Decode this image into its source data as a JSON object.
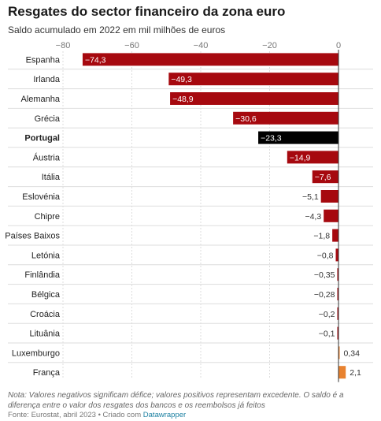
{
  "title": "Resgates do sector financeiro da zona euro",
  "subtitle": "Saldo acumulado em 2022 em mil milhões de euros",
  "notes": "Nota: Valores negativos significam défice; valores positivos representam excedente. O saldo é a diferença entre o valor dos resgates dos bancos e os reembolsos já feitos",
  "source_prefix": "Fonte: Eurostat, abril 2023 • Criado com ",
  "source_credit": "Datawrapper",
  "colors": {
    "negative": "#a6090f",
    "highlight": "#000000",
    "positive": "#e8822f",
    "grid": "#dddddd",
    "zero_line": "#333333"
  },
  "chart_data": {
    "type": "bar",
    "orientation": "horizontal",
    "x_ticks": [
      -80,
      -60,
      -40,
      -20,
      0
    ],
    "x_tick_labels": [
      "−80",
      "−60",
      "−40",
      "−20",
      "0"
    ],
    "xlim": [
      -80,
      0
    ],
    "highlight": "Portugal",
    "categories": [
      "Espanha",
      "Irlanda",
      "Alemanha",
      "Grécia",
      "Portugal",
      "Áustria",
      "Itália",
      "Eslovénia",
      "Chipre",
      "Países Baixos",
      "Letónia",
      "Finlândia",
      "Bélgica",
      "Croácia",
      "Lituânia",
      "Luxemburgo",
      "França"
    ],
    "values": [
      -74.3,
      -49.3,
      -48.9,
      -30.6,
      -23.3,
      -14.9,
      -7.6,
      -5.1,
      -4.3,
      -1.8,
      -0.8,
      -0.35,
      -0.28,
      -0.2,
      -0.1,
      0.34,
      2.1
    ],
    "value_labels": [
      "−74,3",
      "−49,3",
      "−48,9",
      "−30,6",
      "−23,3",
      "−14,9",
      "−7,6",
      "−5,1",
      "−4,3",
      "−1,8",
      "−0,8",
      "−0,35",
      "−0,28",
      "−0,2",
      "−0,1",
      "0,34",
      "2,1"
    ]
  }
}
